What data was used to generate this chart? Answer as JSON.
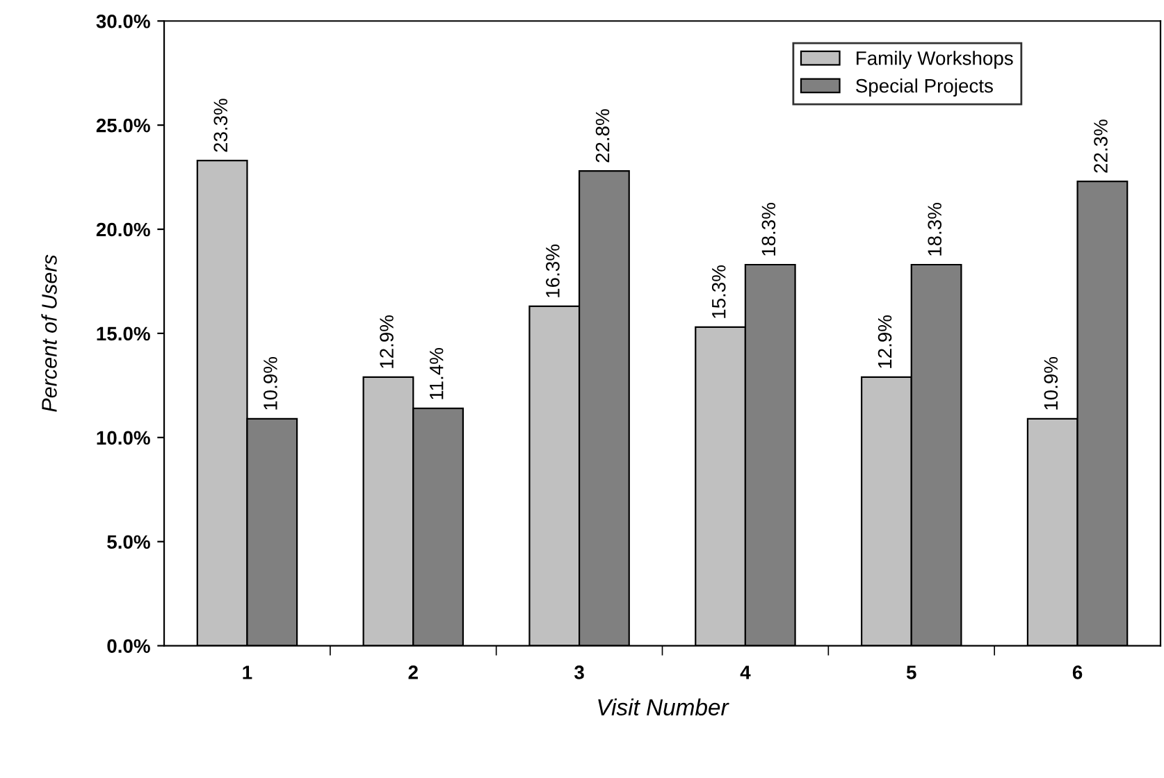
{
  "chart_data": {
    "type": "bar",
    "xlabel": "Visit Number",
    "ylabel": "Percent of Users",
    "categories": [
      "1",
      "2",
      "3",
      "4",
      "5",
      "6"
    ],
    "series": [
      {
        "name": "Family Workshops",
        "color": "#c0c0c0",
        "values": [
          23.3,
          12.9,
          16.3,
          15.3,
          12.9,
          10.9
        ],
        "value_labels": [
          "23.3%",
          "12.9%",
          "16.3%",
          "15.3%",
          "12.9%",
          "10.9%"
        ]
      },
      {
        "name": "Special Projects",
        "color": "#808080",
        "values": [
          10.9,
          11.4,
          22.8,
          18.3,
          18.3,
          22.3
        ],
        "value_labels": [
          "10.9%",
          "11.4%",
          "22.8%",
          "18.3%",
          "18.3%",
          "22.3%"
        ]
      }
    ],
    "ylim": [
      0,
      30
    ],
    "yticks": [
      {
        "value": 0,
        "label": "0.0%"
      },
      {
        "value": 5,
        "label": "5.0%"
      },
      {
        "value": 10,
        "label": "10.0%"
      },
      {
        "value": 15,
        "label": "15.0%"
      },
      {
        "value": 20,
        "label": "20.0%"
      },
      {
        "value": 25,
        "label": "25.0%"
      },
      {
        "value": 30,
        "label": "30.0%"
      }
    ],
    "grid": false,
    "legend": "top right"
  }
}
